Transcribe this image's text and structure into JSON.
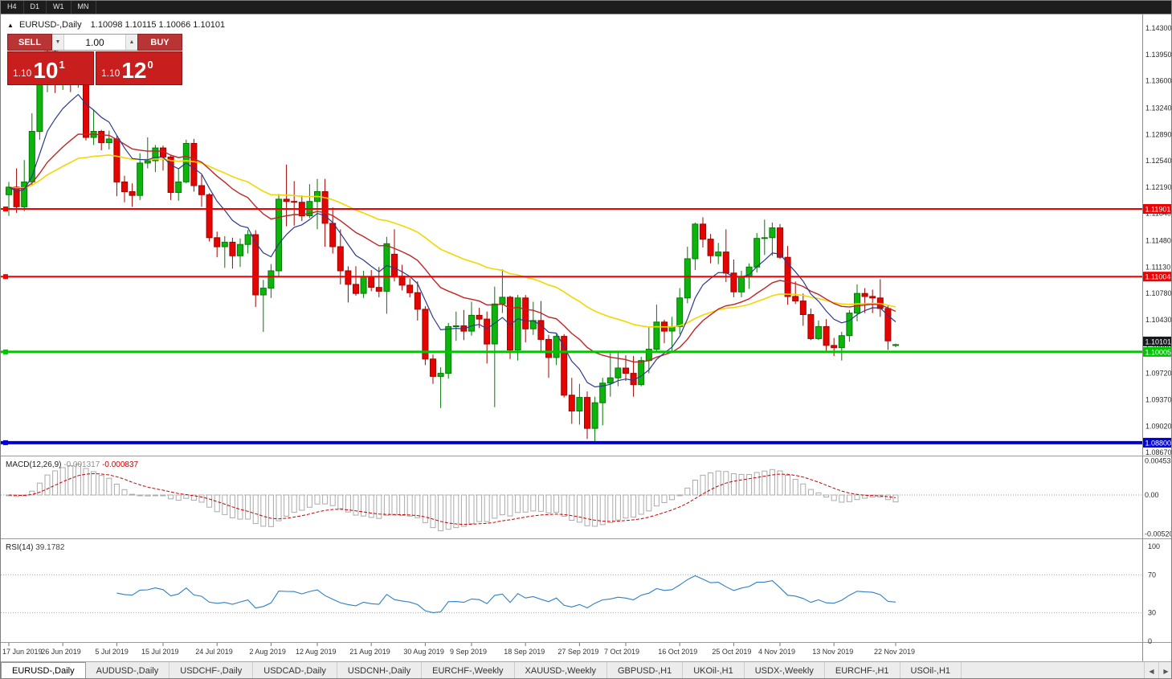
{
  "toolbar": {
    "timeframes": [
      "H4",
      "D1",
      "W1",
      "MN"
    ]
  },
  "chart_header": {
    "toggle_icon": "▲",
    "symbol": "EURUSD-,Daily",
    "ohlc": "1.10098 1.10115 1.10066 1.10101"
  },
  "trade_panel": {
    "sell_label": "SELL",
    "buy_label": "BUY",
    "volume": "1.00",
    "down_icon": "▼",
    "up_icon": "▲",
    "sell_price": {
      "prefix": "1.10",
      "big": "10",
      "sup": "1"
    },
    "buy_price": {
      "prefix": "1.10",
      "big": "12",
      "sup": "0"
    }
  },
  "colors": {
    "bull": "#0CB50C",
    "bull_stroke": "#067806",
    "bear": "#E50400",
    "bear_stroke": "#A00300",
    "ma_fast": "#2B3A8F",
    "ma_mid": "#C22424",
    "ma_slow": "#EFD800",
    "level_red": "#F00000",
    "level_green": "#00C400",
    "level_blue": "#0000D6",
    "current_badge": "#15191E",
    "macd_hist": "#ABABAB",
    "macd_signal": "#CC0000",
    "rsi_line": "#2E7FC2",
    "axis_text": "#2a2a2a"
  },
  "levels": [
    {
      "value": 1.11901,
      "label": "1.11901",
      "color": "#F00000",
      "width": 2
    },
    {
      "value": 1.11004,
      "label": "1.11004",
      "color": "#F00000",
      "width": 2
    },
    {
      "value": 1.10005,
      "label": "1.10005",
      "color": "#00C400",
      "width": 3
    },
    {
      "value": 1.088,
      "label": "1.08800",
      "color": "#0000D6",
      "width": 4
    }
  ],
  "current_price": {
    "value": 1.10101,
    "label": "1.10101"
  },
  "macd_panel": {
    "name": "MACD(12,26,9)",
    "value_main": "-0.001317",
    "value_signal": "-0.000837",
    "axis": [
      "0.004536",
      "0.00",
      "-0.00520"
    ],
    "fast": 12,
    "slow": 26,
    "signal": 9
  },
  "rsi_panel": {
    "name": "RSI(14)",
    "value": "39.1782",
    "axis": [
      "100",
      "70",
      "30",
      "0"
    ],
    "levels": [
      70,
      30
    ],
    "period": 14
  },
  "chart_data": {
    "type": "candlestick",
    "symbol": "EURUSD-",
    "timeframe": "Daily",
    "y_ticks": [
      "1.14300",
      "1.13950",
      "1.13600",
      "1.13240",
      "1.12890",
      "1.12540",
      "1.12190",
      "1.11840",
      "1.11480",
      "1.11130",
      "1.10780",
      "1.10430",
      "1.10080",
      "1.09720",
      "1.09370",
      "1.09020",
      "1.08670"
    ],
    "x_labels": [
      {
        "i": 0,
        "label": "17 Jun 2019"
      },
      {
        "i": 7,
        "label": "26 Jun 2019"
      },
      {
        "i": 14,
        "label": "5 Jul 2019"
      },
      {
        "i": 20,
        "label": "15 Jul 2019"
      },
      {
        "i": 27,
        "label": "24 Jul 2019"
      },
      {
        "i": 34,
        "label": "2 Aug 2019"
      },
      {
        "i": 40,
        "label": "12 Aug 2019"
      },
      {
        "i": 47,
        "label": "21 Aug 2019"
      },
      {
        "i": 54,
        "label": "30 Aug 2019"
      },
      {
        "i": 60,
        "label": "9 Sep 2019"
      },
      {
        "i": 67,
        "label": "18 Sep 2019"
      },
      {
        "i": 74,
        "label": "27 Sep 2019"
      },
      {
        "i": 80,
        "label": "7 Oct 2019"
      },
      {
        "i": 87,
        "label": "16 Oct 2019"
      },
      {
        "i": 94,
        "label": "25 Oct 2019"
      },
      {
        "i": 100,
        "label": "4 Nov 2019"
      },
      {
        "i": 107,
        "label": "13 Nov 2019"
      },
      {
        "i": 115,
        "label": "22 Nov 2019"
      }
    ],
    "indicators": {
      "ma_fast_period": 8,
      "ma_mid_period": 21,
      "ma_slow_period": 45,
      "macd": "12,26,9",
      "rsi": 14
    },
    "ohlc": [
      [
        1.1209,
        1.1226,
        1.1181,
        1.1219
      ],
      [
        1.1219,
        1.1244,
        1.1185,
        1.1193
      ],
      [
        1.1193,
        1.1255,
        1.1187,
        1.1226
      ],
      [
        1.1226,
        1.1317,
        1.1221,
        1.1293
      ],
      [
        1.1293,
        1.1378,
        1.1282,
        1.1368
      ],
      [
        1.1368,
        1.1403,
        1.1345,
        1.1399
      ],
      [
        1.1399,
        1.1412,
        1.1344,
        1.1366
      ],
      [
        1.1366,
        1.1391,
        1.1348,
        1.1371
      ],
      [
        1.1371,
        1.1389,
        1.1345,
        1.1368
      ],
      [
        1.1368,
        1.1381,
        1.1351,
        1.1373
      ],
      [
        1.1373,
        1.1376,
        1.1281,
        1.1285
      ],
      [
        1.1285,
        1.1322,
        1.1275,
        1.1293
      ],
      [
        1.1293,
        1.1295,
        1.1268,
        1.1278
      ],
      [
        1.1278,
        1.1294,
        1.1269,
        1.1283
      ],
      [
        1.1283,
        1.1288,
        1.1207,
        1.1226
      ],
      [
        1.1226,
        1.1234,
        1.1199,
        1.1213
      ],
      [
        1.1213,
        1.1224,
        1.1193,
        1.1208
      ],
      [
        1.1208,
        1.1264,
        1.1202,
        1.1251
      ],
      [
        1.1251,
        1.1285,
        1.1244,
        1.1254
      ],
      [
        1.1254,
        1.1275,
        1.1239,
        1.1271
      ],
      [
        1.1271,
        1.1274,
        1.1241,
        1.1259
      ],
      [
        1.1259,
        1.1262,
        1.1202,
        1.1212
      ],
      [
        1.1212,
        1.1243,
        1.1201,
        1.1226
      ],
      [
        1.1226,
        1.1282,
        1.1224,
        1.1277
      ],
      [
        1.1277,
        1.1283,
        1.1213,
        1.1221
      ],
      [
        1.1221,
        1.1235,
        1.1193,
        1.1209
      ],
      [
        1.1209,
        1.1211,
        1.1147,
        1.1152
      ],
      [
        1.1152,
        1.116,
        1.1126,
        1.114
      ],
      [
        1.114,
        1.1154,
        1.1112,
        1.1146
      ],
      [
        1.1146,
        1.1152,
        1.1111,
        1.1128
      ],
      [
        1.1128,
        1.1151,
        1.1113,
        1.1143
      ],
      [
        1.1143,
        1.1162,
        1.1131,
        1.1156
      ],
      [
        1.1156,
        1.1162,
        1.106,
        1.1076
      ],
      [
        1.1076,
        1.1096,
        1.1027,
        1.1085
      ],
      [
        1.1085,
        1.1117,
        1.1072,
        1.1108
      ],
      [
        1.1108,
        1.121,
        1.1101,
        1.1203
      ],
      [
        1.1203,
        1.1249,
        1.1167,
        1.12
      ],
      [
        1.12,
        1.1227,
        1.1168,
        1.1199
      ],
      [
        1.1199,
        1.1208,
        1.1174,
        1.1181
      ],
      [
        1.1181,
        1.1223,
        1.1178,
        1.12
      ],
      [
        1.12,
        1.123,
        1.1163,
        1.1213
      ],
      [
        1.1213,
        1.123,
        1.114,
        1.1171
      ],
      [
        1.1171,
        1.1192,
        1.1131,
        1.114
      ],
      [
        1.114,
        1.1163,
        1.109,
        1.1108
      ],
      [
        1.1108,
        1.1114,
        1.1066,
        1.109
      ],
      [
        1.109,
        1.1114,
        1.1075,
        1.1078
      ],
      [
        1.1078,
        1.1108,
        1.1072,
        1.11
      ],
      [
        1.11,
        1.1109,
        1.1081,
        1.1086
      ],
      [
        1.1086,
        1.1113,
        1.1073,
        1.1081
      ],
      [
        1.1081,
        1.1153,
        1.1051,
        1.1144
      ],
      [
        1.113,
        1.1163,
        1.1094,
        1.1101
      ],
      [
        1.1101,
        1.1116,
        1.1082,
        1.1089
      ],
      [
        1.1089,
        1.1098,
        1.1073,
        1.1079
      ],
      [
        1.1079,
        1.1094,
        1.1042,
        1.1057
      ],
      [
        1.1057,
        1.1061,
        1.0983,
        1.0991
      ],
      [
        1.0991,
        1.0997,
        1.0958,
        1.0968
      ],
      [
        1.0968,
        1.098,
        1.0926,
        1.0972
      ],
      [
        1.0972,
        1.1039,
        1.0965,
        1.1034
      ],
      [
        1.1034,
        1.1054,
        1.1015,
        1.1035
      ],
      [
        1.1035,
        1.1056,
        1.1016,
        1.1028
      ],
      [
        1.1028,
        1.1067,
        1.1022,
        1.1049
      ],
      [
        1.1049,
        1.1059,
        1.1032,
        1.1044
      ],
      [
        1.1044,
        1.1054,
        1.0985,
        1.1011
      ],
      [
        1.1011,
        1.1087,
        1.0927,
        1.1064
      ],
      [
        1.1064,
        1.111,
        1.1052,
        1.1073
      ],
      [
        1.1073,
        1.1075,
        1.0991,
        1.1003
      ],
      [
        1.1003,
        1.1076,
        1.0989,
        1.1072
      ],
      [
        1.1072,
        1.1076,
        1.1013,
        1.1031
      ],
      [
        1.1031,
        1.1067,
        1.1023,
        1.1042
      ],
      [
        1.1042,
        1.1068,
        1.0999,
        1.1017
      ],
      [
        1.1017,
        1.1023,
        1.0966,
        1.0993
      ],
      [
        1.0993,
        1.1024,
        1.0983,
        1.1021
      ],
      [
        1.1021,
        1.1024,
        1.094,
        1.0943
      ],
      [
        1.0943,
        1.0966,
        1.0905,
        1.0922
      ],
      [
        1.0922,
        1.0958,
        1.0904,
        1.094
      ],
      [
        1.094,
        1.0948,
        1.0885,
        1.0899
      ],
      [
        1.0899,
        1.0941,
        1.0879,
        1.0933
      ],
      [
        1.0933,
        1.0966,
        1.0903,
        1.0959
      ],
      [
        1.0959,
        1.0999,
        1.0941,
        1.0966
      ],
      [
        1.0966,
        1.0999,
        1.0955,
        1.0979
      ],
      [
        1.0979,
        1.0996,
        1.0962,
        1.0972
      ],
      [
        1.0972,
        1.0995,
        1.0941,
        1.0957
      ],
      [
        1.0957,
        1.0994,
        1.0955,
        1.0989
      ],
      [
        1.0989,
        1.1034,
        1.0972,
        1.1004
      ],
      [
        1.1004,
        1.1063,
        1.1002,
        1.104
      ],
      [
        1.104,
        1.1043,
        1.1012,
        1.1028
      ],
      [
        1.1028,
        1.1047,
        1.1001,
        1.1034
      ],
      [
        1.1034,
        1.1085,
        1.1024,
        1.1072
      ],
      [
        1.1072,
        1.114,
        1.1065,
        1.1124
      ],
      [
        1.1124,
        1.1172,
        1.1109,
        1.117
      ],
      [
        1.117,
        1.1179,
        1.1139,
        1.115
      ],
      [
        1.115,
        1.1157,
        1.1118,
        1.1128
      ],
      [
        1.1128,
        1.1145,
        1.1117,
        1.1133
      ],
      [
        1.1133,
        1.1163,
        1.1093,
        1.1105
      ],
      [
        1.1105,
        1.1123,
        1.1073,
        1.108
      ],
      [
        1.108,
        1.1108,
        1.1073,
        1.11
      ],
      [
        1.11,
        1.1118,
        1.1084,
        1.1113
      ],
      [
        1.1113,
        1.1158,
        1.1106,
        1.1151
      ],
      [
        1.1151,
        1.1176,
        1.1129,
        1.1152
      ],
      [
        1.1152,
        1.1172,
        1.1128,
        1.1165
      ],
      [
        1.1165,
        1.117,
        1.1124,
        1.1126
      ],
      [
        1.1126,
        1.1141,
        1.1063,
        1.1074
      ],
      [
        1.1074,
        1.1094,
        1.1064,
        1.1068
      ],
      [
        1.1068,
        1.1078,
        1.1035,
        1.105
      ],
      [
        1.105,
        1.1058,
        1.1016,
        1.1018
      ],
      [
        1.1018,
        1.1042,
        1.1016,
        1.1034
      ],
      [
        1.1034,
        1.1044,
        1.1002,
        1.1009
      ],
      [
        1.1009,
        1.1019,
        1.0995,
        1.1006
      ],
      [
        1.1006,
        1.1027,
        1.0989,
        1.1022
      ],
      [
        1.1022,
        1.1056,
        1.1014,
        1.1052
      ],
      [
        1.1052,
        1.109,
        1.1041,
        1.1078
      ],
      [
        1.1078,
        1.1085,
        1.1052,
        1.1074
      ],
      [
        1.1074,
        1.1083,
        1.1052,
        1.1072
      ],
      [
        1.1072,
        1.1097,
        1.1047,
        1.1058
      ],
      [
        1.1058,
        1.1062,
        1.1003,
        1.1015
      ],
      [
        1.10098,
        1.10115,
        1.10066,
        1.10101
      ]
    ]
  },
  "tabs": {
    "scroll_left_icon": "◀",
    "scroll_right_icon": "▶",
    "items": [
      {
        "label": "EURUSD-,Daily",
        "active": true
      },
      {
        "label": "AUDUSD-,Daily",
        "active": false
      },
      {
        "label": "USDCHF-,Daily",
        "active": false
      },
      {
        "label": "USDCAD-,Daily",
        "active": false
      },
      {
        "label": "USDCNH-,Daily",
        "active": false
      },
      {
        "label": "EURCHF-,Weekly",
        "active": false
      },
      {
        "label": "XAUUSD-,Weekly",
        "active": false
      },
      {
        "label": "GBPUSD-,H1",
        "active": false
      },
      {
        "label": "UKOil-,H1",
        "active": false
      },
      {
        "label": "USDX-,Weekly",
        "active": false
      },
      {
        "label": "EURCHF-,H1",
        "active": false
      },
      {
        "label": "USOil-,H1",
        "active": false
      }
    ]
  }
}
